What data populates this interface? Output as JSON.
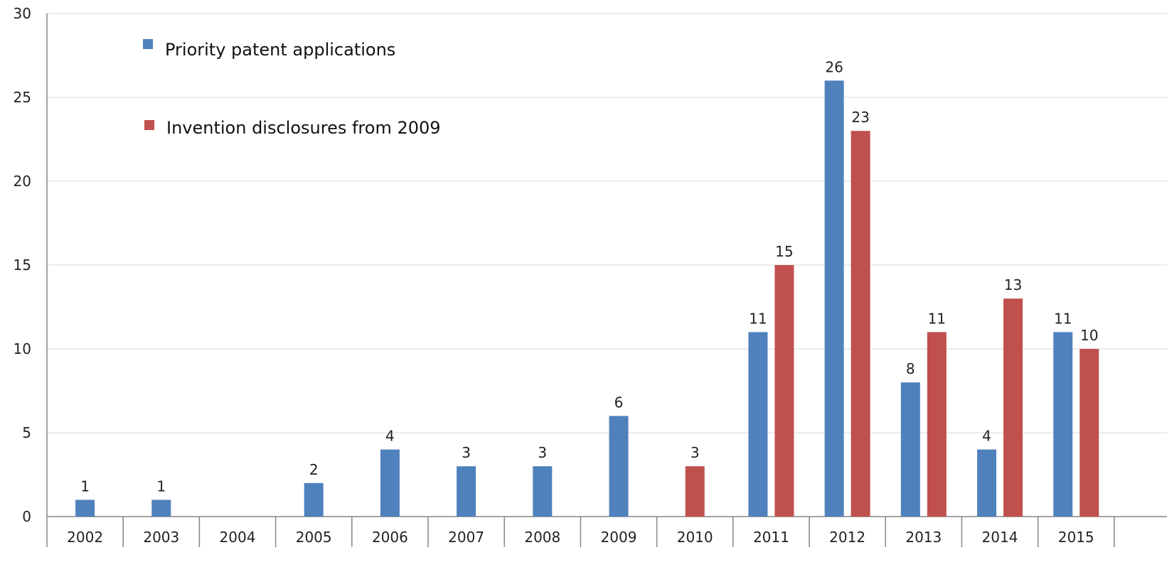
{
  "chart_data": {
    "type": "bar",
    "title": "",
    "xlabel": "",
    "ylabel": "",
    "ylim": [
      0,
      30
    ],
    "yticks": [
      0,
      5,
      10,
      15,
      20,
      25,
      30
    ],
    "grid": true,
    "legend_position": "top-left",
    "categories": [
      "2002",
      "2003",
      "2004",
      "2005",
      "2006",
      "2007",
      "2008",
      "2009",
      "2010",
      "2011",
      "2012",
      "2013",
      "2014",
      "2015"
    ],
    "series": [
      {
        "name": "Priority patent applications",
        "color": "#4f81bd",
        "values": [
          1,
          1,
          null,
          2,
          4,
          3,
          3,
          6,
          null,
          11,
          26,
          8,
          4,
          11
        ]
      },
      {
        "name": "Invention disclosures from 2009",
        "color": "#c0504d",
        "values": [
          null,
          null,
          null,
          null,
          null,
          null,
          null,
          null,
          3,
          15,
          23,
          11,
          13,
          10
        ]
      }
    ]
  }
}
